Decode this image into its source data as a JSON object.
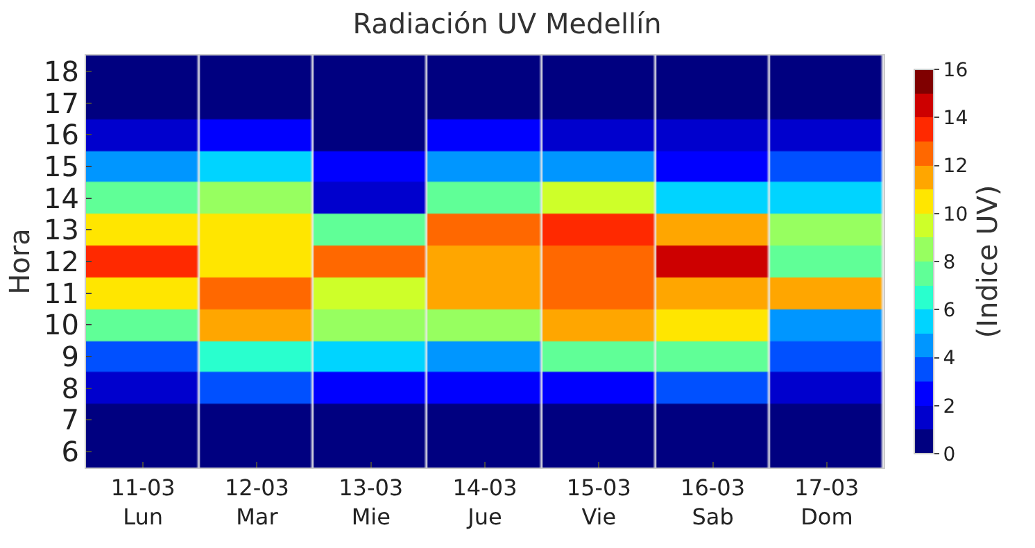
{
  "chart_data": {
    "type": "heatmap",
    "title": "Radiación UV Medellín",
    "ylabel": "Hora",
    "clabel": "(Indice UV)",
    "categories": [
      "11-03\nLun",
      "12-03\nMar",
      "13-03\nMie",
      "14-03\nJue",
      "15-03\nVie",
      "16-03\nSab",
      "17-03\nDom"
    ],
    "y_categories": [
      "18",
      "17",
      "16",
      "15",
      "14",
      "13",
      "12",
      "11",
      "10",
      "9",
      "8",
      "7",
      "6"
    ],
    "cells": [
      [
        0.5,
        0.5,
        0.5,
        0.5,
        0.5,
        0.5,
        0.5
      ],
      [
        0.5,
        0.5,
        0.5,
        0.5,
        0.5,
        0.5,
        0.5
      ],
      [
        1.5,
        2.5,
        0.5,
        2.5,
        1.5,
        1.5,
        1.5
      ],
      [
        4.5,
        5.5,
        2.5,
        4.5,
        4.5,
        2.5,
        3.5
      ],
      [
        7.5,
        8.5,
        1.5,
        7.5,
        9.5,
        5.5,
        5.5
      ],
      [
        10.5,
        10.5,
        7.5,
        12.5,
        13.5,
        11.5,
        8.5
      ],
      [
        13.5,
        10.5,
        12.5,
        11.5,
        12.5,
        14.5,
        7.5
      ],
      [
        10.5,
        12.5,
        9.5,
        11.5,
        12.5,
        11.5,
        11.5
      ],
      [
        7.5,
        11.5,
        8.5,
        8.5,
        11.5,
        10.5,
        4.5
      ],
      [
        3.5,
        6.5,
        5.5,
        4.5,
        7.5,
        7.5,
        3.5
      ],
      [
        1.5,
        3.5,
        2.5,
        2.5,
        2.5,
        3.5,
        1.5
      ],
      [
        0.5,
        0.5,
        0.5,
        0.5,
        0.5,
        0.5,
        0.5
      ],
      [
        0.5,
        0.5,
        0.5,
        0.5,
        0.5,
        0.5,
        0.5
      ]
    ],
    "clim": [
      0,
      16
    ],
    "cticks": [
      0,
      2,
      4,
      6,
      8,
      10,
      12,
      14,
      16
    ]
  }
}
